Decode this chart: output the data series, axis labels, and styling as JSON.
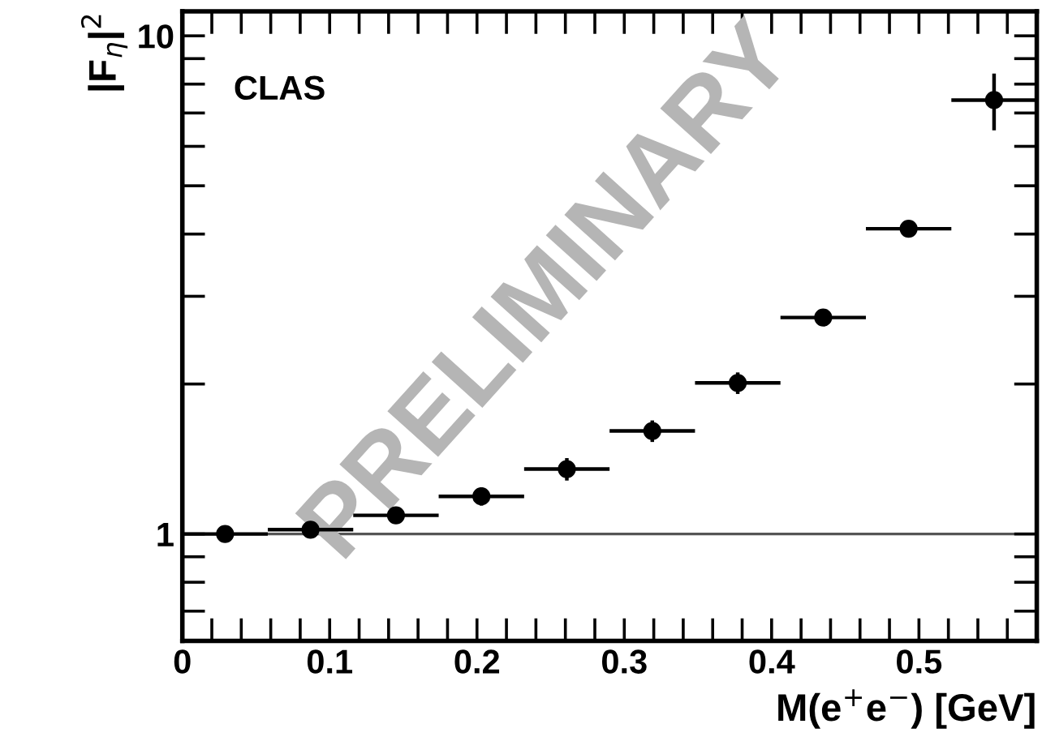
{
  "chart_data": {
    "type": "scatter",
    "xlabel": "M(e$^{+}$e$^{−}$) [GeV]",
    "ylabel": "|F$_{η}$|$^{2}$",
    "annotations": [
      "CLAS",
      "PRELIMINARY"
    ],
    "x": [
      0.029,
      0.087,
      0.145,
      0.203,
      0.261,
      0.319,
      0.377,
      0.435,
      0.493,
      0.551
    ],
    "series": [
      {
        "color": "#000000",
        "values": [
          1.0,
          1.02,
          1.09,
          1.19,
          1.35,
          1.61,
          2.01,
          2.72,
          4.1,
          7.43
        ],
        "errors": [
          0.02,
          0.03,
          0.04,
          0.05,
          0.07,
          0.08,
          0.1,
          0.08,
          0.15,
          0.97
        ],
        "xerrors": [
          0.029,
          0.029,
          0.029,
          0.029,
          0.029,
          0.029,
          0.029,
          0.029,
          0.029,
          0.029
        ]
      }
    ],
    "marker": "circle",
    "log": "y",
    "xlim": [
      0,
      0.58
    ],
    "ylim": [
      0.61,
      11.2
    ],
    "xticks": [
      0,
      0.1,
      0.2,
      0.3,
      0.4,
      0.5,
      {
        "value": 0.02,
        "label": null
      },
      {
        "value": 0.04,
        "label": null
      },
      {
        "value": 0.06,
        "label": null
      },
      {
        "value": 0.08,
        "label": null
      },
      {
        "value": 0.12,
        "label": null
      },
      {
        "value": 0.14,
        "label": null
      },
      {
        "value": 0.16,
        "label": null
      },
      {
        "value": 0.18,
        "label": null
      },
      {
        "value": 0.22,
        "label": null
      },
      {
        "value": 0.24,
        "label": null
      },
      {
        "value": 0.26,
        "label": null
      },
      {
        "value": 0.28,
        "label": null
      },
      {
        "value": 0.32,
        "label": null
      },
      {
        "value": 0.34,
        "label": null
      },
      {
        "value": 0.36,
        "label": null
      },
      {
        "value": 0.38,
        "label": null
      },
      {
        "value": 0.42,
        "label": null
      },
      {
        "value": 0.44,
        "label": null
      },
      {
        "value": 0.46,
        "label": null
      },
      {
        "value": 0.48,
        "label": null
      },
      {
        "value": 0.52,
        "label": null
      },
      {
        "value": 0.54,
        "label": null
      },
      {
        "value": 0.56,
        "label": null
      }
    ],
    "yticks": [
      1,
      10,
      {
        "value": 0.7,
        "label": null
      },
      {
        "value": 0.8,
        "label": null
      },
      {
        "value": 0.9,
        "label": null
      },
      {
        "value": 2,
        "label": null
      },
      {
        "value": 3,
        "label": null
      },
      {
        "value": 4,
        "label": null
      },
      {
        "value": 5,
        "label": null
      },
      {
        "value": 6,
        "label": null
      },
      {
        "value": 7,
        "label": null
      },
      {
        "value": 8,
        "label": null
      },
      {
        "value": 9,
        "label": null
      }
    ],
    "ref_lines": [
      {
        "axis": "y",
        "value": 1,
        "color": "#555555",
        "line_style": "solid"
      }
    ],
    "grid": false
  }
}
